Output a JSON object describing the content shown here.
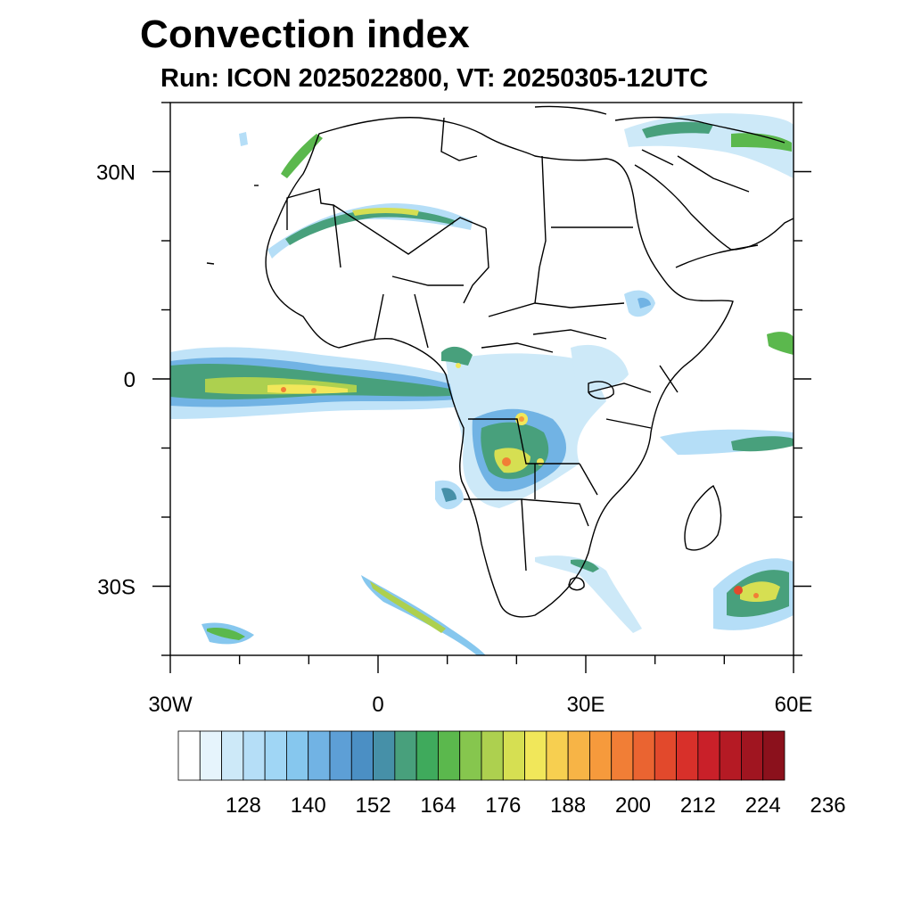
{
  "header": {
    "title": "Convection index",
    "subtitle": "Run: ICON 2025022800,  VT: 20250305-12UTC"
  },
  "map": {
    "projection": "lat-lon",
    "lon_range": [
      -30,
      60
    ],
    "lat_range": [
      -40,
      40
    ],
    "lon_ticks": [
      {
        "lon": -30,
        "label": "30W"
      },
      {
        "lon": 0,
        "label": "0"
      },
      {
        "lon": 30,
        "label": "30E"
      },
      {
        "lon": 60,
        "label": "60E"
      }
    ],
    "lat_ticks": [
      {
        "lat": 30,
        "label": "30N"
      },
      {
        "lat": 0,
        "label": "0"
      },
      {
        "lat": -30,
        "label": "30S"
      }
    ]
  },
  "colorbar": {
    "colors": [
      "#ffffff",
      "#e6f4fc",
      "#cde9f8",
      "#b5def7",
      "#a0d6f5",
      "#86c7ee",
      "#71b3e4",
      "#5d9fd6",
      "#4b8fc4",
      "#4690a8",
      "#48a07c",
      "#3faa5c",
      "#5bb84d",
      "#86c64e",
      "#add04f",
      "#d6df52",
      "#f1e75a",
      "#f7cf50",
      "#f7b446",
      "#f69a3c",
      "#f17e36",
      "#ea6431",
      "#e2492c",
      "#d8302a",
      "#c92029",
      "#b51a24",
      "#a01520",
      "#8b111c"
    ],
    "labels": [
      "128",
      "140",
      "152",
      "164",
      "176",
      "188",
      "200",
      "212",
      "224",
      "236"
    ]
  }
}
